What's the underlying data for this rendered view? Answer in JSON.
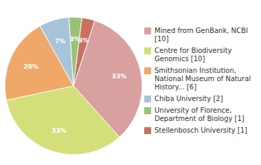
{
  "chart_data": {
    "type": "pie",
    "categories": [
      "Mined from GenBank, NCBI [10]",
      "Centre for Biodiversity\nGenomics [10]",
      "Smithsonian Institution,\nNational Museum of Natural\nHistory... [6]",
      "Chiba University [2]",
      "University of Florence,\nDepartment of Biology [1]",
      "Stellenbosch University [1]"
    ],
    "values": [
      33,
      33,
      20,
      7,
      3,
      3
    ],
    "value_labels": [
      "33%",
      "33%",
      "20%",
      "7%",
      "3%",
      "3%"
    ],
    "colors": [
      "#d9a0a0",
      "#d4df7a",
      "#f0a868",
      "#a8c4d8",
      "#99c277",
      "#c97060"
    ],
    "data_labels": true,
    "legend": "right"
  }
}
